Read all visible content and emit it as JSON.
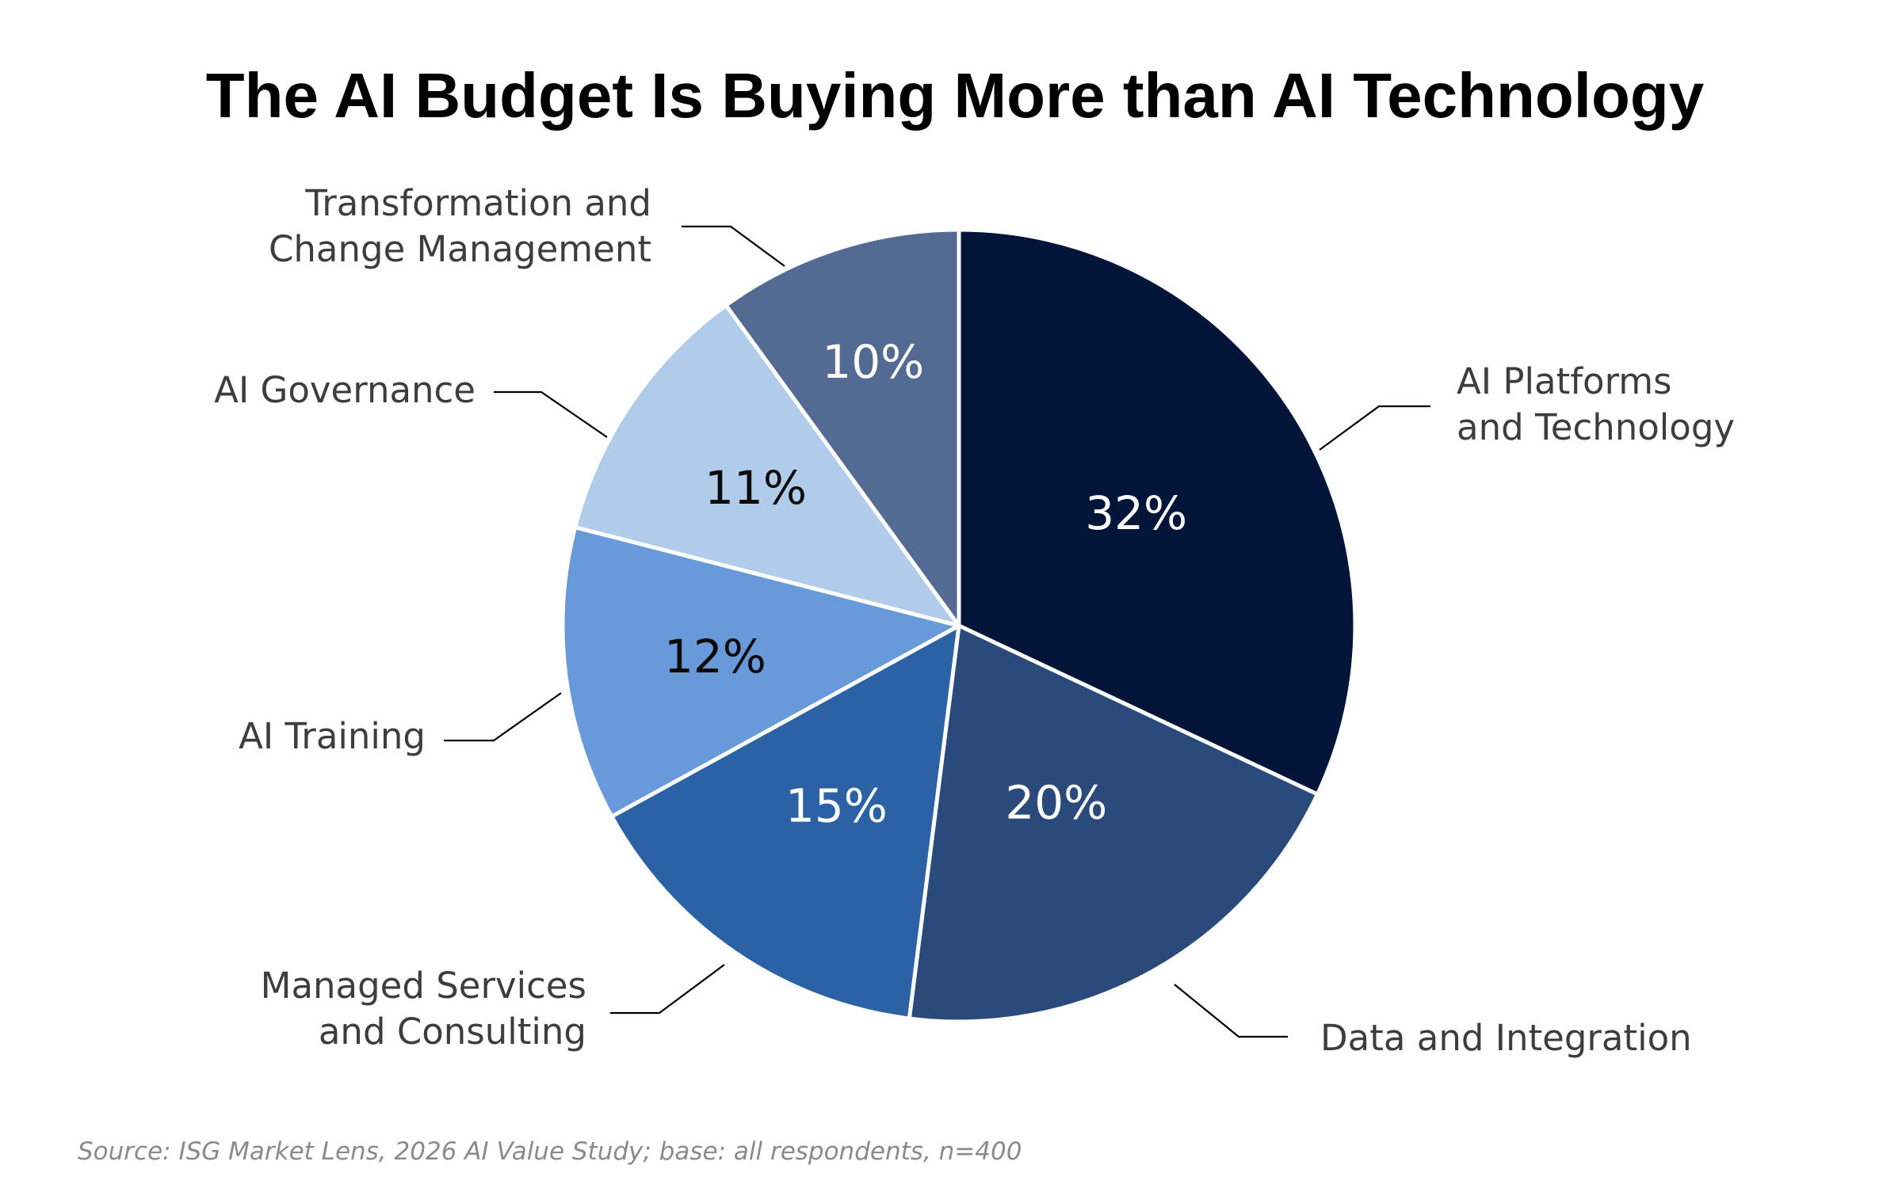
{
  "chart_data": {
    "type": "pie",
    "title": "The AI Budget Is Buying More than AI Technology",
    "source": "Source: ISG Market Lens, 2026 AI Value Study; base: all respondents, n=400",
    "slices": [
      {
        "label_lines": [
          "AI Platforms",
          "and Technology"
        ],
        "value": 32,
        "value_label": "32%",
        "color": "#03163a",
        "value_color": "#ffffff"
      },
      {
        "label_lines": [
          "Data and Integration"
        ],
        "value": 20,
        "value_label": "20%",
        "color": "#2b4a7c",
        "value_color": "#ffffff"
      },
      {
        "label_lines": [
          "Managed Services",
          "and Consulting"
        ],
        "value": 15,
        "value_label": "15%",
        "color": "#2b62a6",
        "value_color": "#ffffff"
      },
      {
        "label_lines": [
          "AI Training"
        ],
        "value": 12,
        "value_label": "12%",
        "color": "#6899d9",
        "value_color": "#0a0a0a"
      },
      {
        "label_lines": [
          "AI Governance"
        ],
        "value": 11,
        "value_label": "11%",
        "color": "#b1cbeb",
        "value_color": "#0a0a0a"
      },
      {
        "label_lines": [
          "Transformation and",
          "Change Management"
        ],
        "value": 10,
        "value_label": "10%",
        "color": "#536a92",
        "value_color": "#ffffff"
      }
    ]
  }
}
